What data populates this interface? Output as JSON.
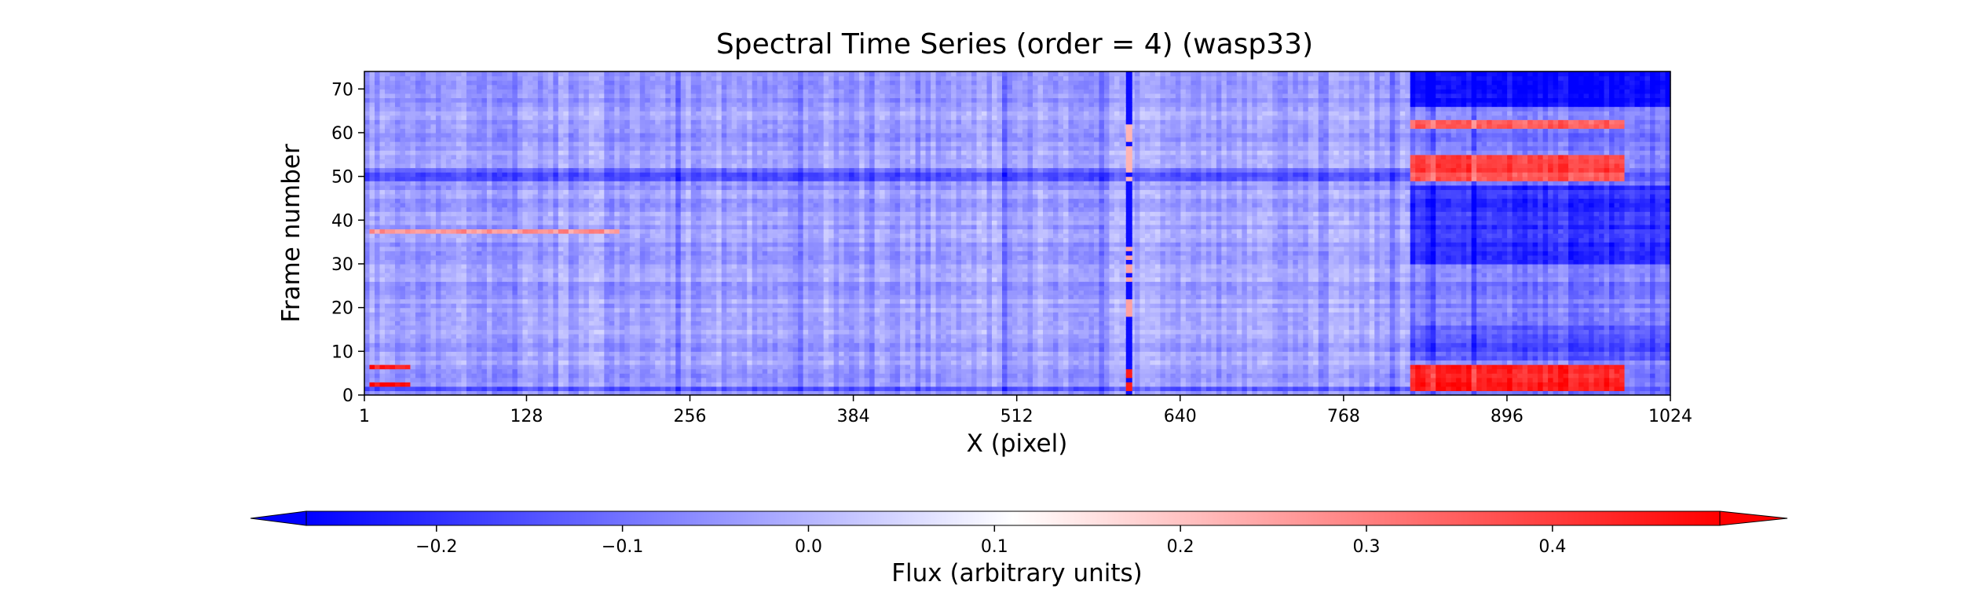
{
  "chart_data": {
    "type": "heatmap",
    "title": "Spectral Time Series (order = 4) (wasp33)",
    "xlabel": "X (pixel)",
    "ylabel": "Frame number",
    "xlim": [
      1,
      1024
    ],
    "ylim": [
      0,
      74
    ],
    "x_ticks": [
      1,
      128,
      256,
      384,
      512,
      640,
      768,
      896,
      1024
    ],
    "y_ticks": [
      0,
      10,
      20,
      30,
      40,
      50,
      60,
      70
    ],
    "grid": false,
    "colormap": "bwr",
    "colormap_colors": [
      "#0000ff",
      "#ffffff",
      "#ff0000"
    ],
    "colorbar": {
      "label": "Flux (arbitrary units)",
      "range": [
        -0.27,
        0.49
      ],
      "ticks": [
        "−0.2",
        "−0.1",
        "0.0",
        "0.1",
        "0.2",
        "0.3",
        "0.4"
      ],
      "tick_values": [
        -0.2,
        -0.1,
        0.0,
        0.1,
        0.2,
        0.3,
        0.4
      ],
      "extend": "both",
      "orientation": "horizontal",
      "placement": "bottom"
    },
    "features": {
      "baseline_value": -0.03,
      "vertical_line": {
        "x": 600,
        "value": -0.25
      },
      "vertical_line_red_segments": [
        {
          "frames": [
            0,
            6
          ],
          "value": 0.45
        },
        {
          "frames": [
            18,
            34
          ],
          "value": 0.25
        },
        {
          "frames": [
            48,
            62
          ],
          "value": 0.22
        }
      ],
      "right_region": {
        "x": [
          820,
          1024
        ]
      },
      "red_patches": [
        {
          "x": [
            820,
            990
          ],
          "frames": [
            1,
            7
          ],
          "value": 0.45
        },
        {
          "x": [
            820,
            990
          ],
          "frames": [
            49,
            55
          ],
          "value": 0.38
        },
        {
          "x": [
            820,
            990
          ],
          "frames": [
            61,
            63
          ],
          "value": 0.35
        },
        {
          "x": [
            5,
            35
          ],
          "frames": [
            2,
            3
          ],
          "value": 0.48
        },
        {
          "x": [
            5,
            35
          ],
          "frames": [
            6,
            7
          ],
          "value": 0.46
        },
        {
          "x": [
            5,
            200
          ],
          "frames": [
            37,
            38
          ],
          "value": 0.25
        }
      ],
      "blue_patches": [
        {
          "x": [
            820,
            1024
          ],
          "frames": [
            66,
            74
          ],
          "value": -0.25
        },
        {
          "x": [
            820,
            1024
          ],
          "frames": [
            30,
            48
          ],
          "value": -0.2
        },
        {
          "x": [
            820,
            1024
          ],
          "frames": [
            8,
            16
          ],
          "value": -0.15
        },
        {
          "x": [
            1,
            1024
          ],
          "frames": [
            1,
            2
          ],
          "value": -0.15
        },
        {
          "x": [
            1,
            1024
          ],
          "frames": [
            49,
            52
          ],
          "value": -0.13
        }
      ]
    }
  }
}
